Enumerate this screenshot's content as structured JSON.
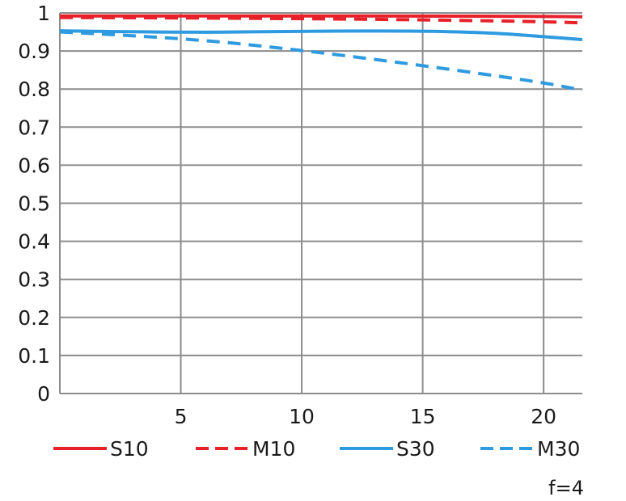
{
  "chart_data": {
    "type": "line",
    "xlim": [
      0,
      21.6
    ],
    "ylim": [
      0,
      1
    ],
    "x_ticks": [
      "5",
      "10",
      "15",
      "20"
    ],
    "x_tick_values": [
      5,
      10,
      15,
      20
    ],
    "y_ticks": [
      "0",
      "0.1",
      "0.2",
      "0.3",
      "0.4",
      "0.5",
      "0.6",
      "0.7",
      "0.8",
      "0.9",
      "1"
    ],
    "y_tick_values": [
      0,
      0.1,
      0.2,
      0.3,
      0.4,
      0.5,
      0.6,
      0.7,
      0.8,
      0.9,
      1.0
    ],
    "grid": true,
    "legend_position": "bottom",
    "footer_label": "f=4",
    "series": [
      {
        "name": "S10",
        "color": "#e8202a",
        "dash": "solid",
        "x": [
          0,
          5,
          10,
          15,
          20,
          21.6
        ],
        "y": [
          0.992,
          0.992,
          0.992,
          0.992,
          0.991,
          0.99
        ]
      },
      {
        "name": "M10",
        "color": "#e8202a",
        "dash": "dashed",
        "x": [
          0,
          5,
          10,
          15,
          20,
          21.6
        ],
        "y": [
          0.988,
          0.987,
          0.985,
          0.982,
          0.977,
          0.974
        ]
      },
      {
        "name": "S30",
        "color": "#2e9be0",
        "dash": "solid",
        "x": [
          0,
          5,
          10,
          15,
          18,
          20,
          21.6
        ],
        "y": [
          0.953,
          0.948,
          0.952,
          0.953,
          0.947,
          0.938,
          0.93
        ]
      },
      {
        "name": "M30",
        "color": "#2e9be0",
        "dash": "dashed",
        "x": [
          0,
          5,
          10,
          15,
          20,
          21.6
        ],
        "y": [
          0.95,
          0.935,
          0.902,
          0.862,
          0.817,
          0.797
        ]
      }
    ]
  }
}
